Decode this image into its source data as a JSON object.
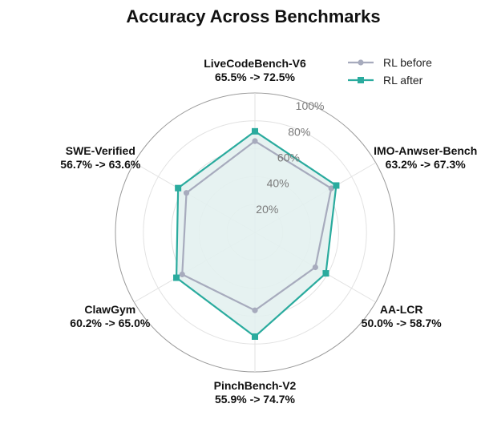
{
  "chart_data": {
    "type": "radar",
    "title": "Accuracy Across Benchmarks",
    "axes": [
      {
        "name": "LiveCodeBench-V6",
        "change": "65.5% -> 72.5%"
      },
      {
        "name": "IMO-Anwser-Bench",
        "change": "63.2% -> 67.3%"
      },
      {
        "name": "AA-LCR",
        "change": "50.0% -> 58.7%"
      },
      {
        "name": "PinchBench-V2",
        "change": "55.9% -> 74.7%"
      },
      {
        "name": "ClawGym",
        "change": "60.2% -> 65.0%"
      },
      {
        "name": "SWE-Verified",
        "change": "56.7% -> 63.6%"
      }
    ],
    "rlim": [
      0,
      100
    ],
    "radial_ticks": [
      "20%",
      "40%",
      "60%",
      "80%",
      "100%"
    ],
    "radial_tick_values": [
      20,
      40,
      60,
      80,
      100
    ],
    "grid": true,
    "legend_position": "top-right",
    "series": [
      {
        "name": "RL before",
        "values": [
          65.5,
          63.2,
          50.0,
          55.9,
          60.2,
          56.7
        ],
        "color": "#a7abbd",
        "marker": "circle",
        "fill": false
      },
      {
        "name": "RL after",
        "values": [
          72.5,
          67.3,
          58.7,
          74.7,
          65.0,
          63.6
        ],
        "color": "#2aab9e",
        "marker": "square",
        "fill": true,
        "fill_color": "#e3f1ef"
      }
    ]
  }
}
